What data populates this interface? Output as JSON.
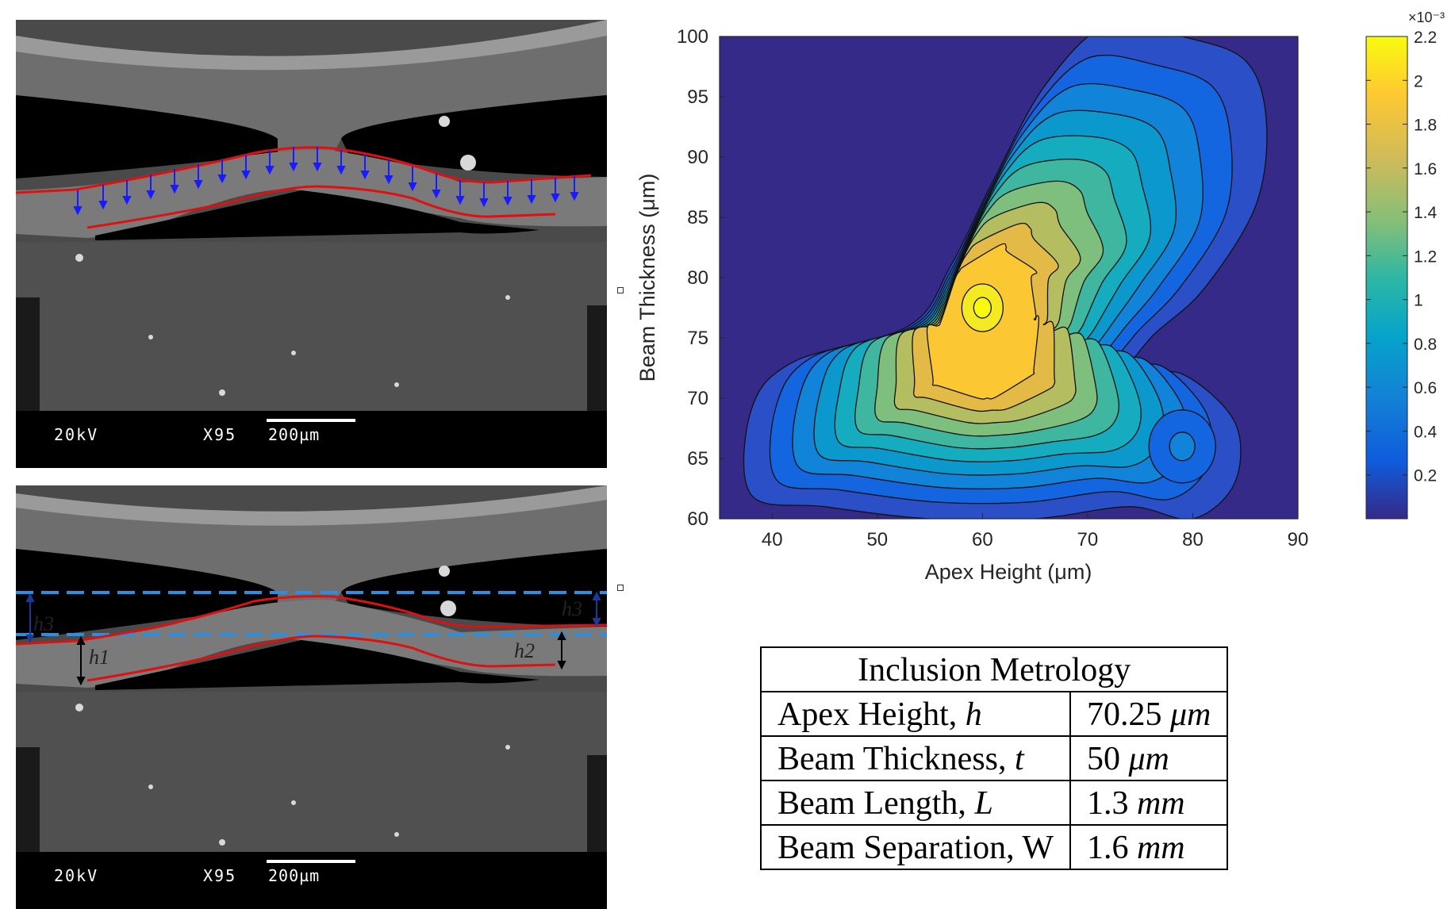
{
  "sem_images": [
    {
      "id_label": "top",
      "voltage": "20kV",
      "magnification": "X95",
      "scale_bar": "200µm"
    },
    {
      "id_label": "bottom",
      "voltage": "20kV",
      "magnification": "X95",
      "scale_bar": "200µm",
      "annotations": [
        "h3",
        "h1",
        "h2",
        "h3"
      ]
    }
  ],
  "chart_data": {
    "type": "contour",
    "xlabel": "Apex Height (μm)",
    "ylabel": "Beam Thickness (μm)",
    "xlim": [
      35,
      90
    ],
    "ylim": [
      60,
      100
    ],
    "x_ticks": [
      40,
      50,
      60,
      70,
      80,
      90
    ],
    "y_ticks": [
      60,
      65,
      70,
      75,
      80,
      85,
      90,
      95,
      100
    ],
    "colorbar": {
      "label_exponent": "×10⁻³",
      "ticks": [
        0.2,
        0.4,
        0.6,
        0.8,
        1,
        1.2,
        1.4,
        1.6,
        1.8,
        2,
        2.2
      ],
      "tick_labels": [
        "0.2",
        "0.4",
        "0.6",
        "0.8",
        "1",
        "1.2",
        "1.4",
        "1.6",
        "1.8",
        "2",
        "2.2"
      ],
      "range": [
        0,
        2.2
      ],
      "colormap": "parula"
    },
    "peaks": [
      {
        "x": 60,
        "y": 77.5,
        "value": 2.2
      },
      {
        "x": 79,
        "y": 66,
        "value": 0.55
      }
    ],
    "grid": false
  },
  "table": {
    "title": "Inclusion Metrology",
    "rows": [
      {
        "name": "Apex Height, ",
        "symbol": "h",
        "value": "70.25 ",
        "unit": "μm"
      },
      {
        "name": "Beam Thickness, ",
        "symbol": "t",
        "value": "50 ",
        "unit": "μm"
      },
      {
        "name": "Beam Length, ",
        "symbol": "L",
        "value": "1.3 ",
        "unit": "mm"
      },
      {
        "name": "Beam Separation, W",
        "symbol": "",
        "value": "1.6 ",
        "unit": "mm"
      }
    ]
  }
}
